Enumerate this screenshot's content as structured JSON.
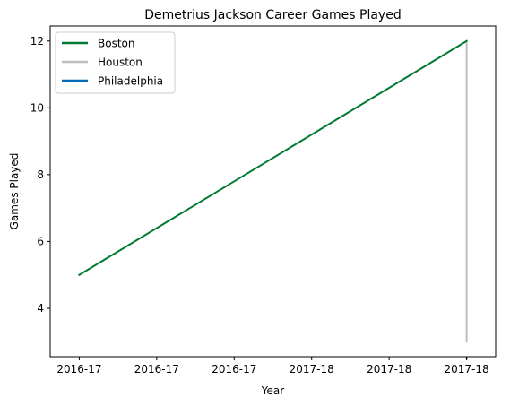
{
  "chart_data": {
    "type": "line",
    "title": "Demetrius Jackson Career Games Played",
    "xlabel": "Year",
    "ylabel": "Games Played",
    "x_tick_labels": [
      "2016-17",
      "2016-17",
      "2016-17",
      "2017-18",
      "2017-18",
      "2017-18"
    ],
    "xlim": [
      -0.075,
      1.075
    ],
    "ylim": [
      2.55,
      12.45
    ],
    "y_ticks": [
      4,
      6,
      8,
      10,
      12
    ],
    "grid": false,
    "legend_position": "top-left",
    "series": [
      {
        "name": "Boston",
        "color": "#007A33",
        "points": [
          [
            0,
            5
          ],
          [
            1,
            12
          ]
        ]
      },
      {
        "name": "Houston",
        "color": "#BEBEBE",
        "points": [
          [
            1,
            12
          ],
          [
            1,
            3
          ]
        ]
      },
      {
        "name": "Philadelphia",
        "color": "#006BB6",
        "points": [
          [
            1,
            2.5
          ],
          [
            1,
            2.5
          ]
        ]
      }
    ]
  }
}
